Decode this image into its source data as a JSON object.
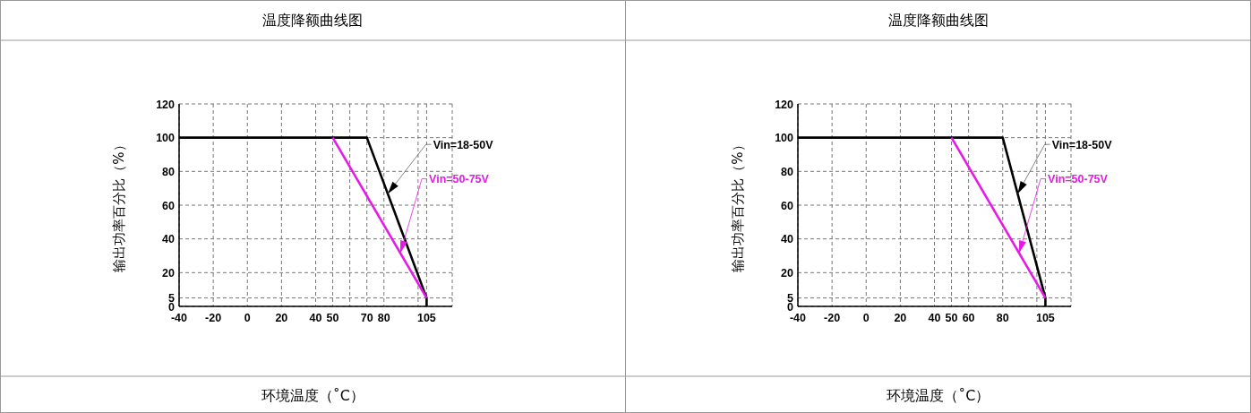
{
  "chart_data": [
    {
      "type": "line",
      "title": "温度降额曲线图",
      "xlabel": "环境温度（˚C）",
      "ylabel": "输出功率百分比（%）",
      "xlim": [
        -40,
        120
      ],
      "ylim": [
        0,
        120
      ],
      "grid": true,
      "xticks": [
        -40,
        -20,
        0,
        20,
        40,
        50,
        {
          "value": 60,
          "label": null
        },
        70,
        80,
        {
          "value": 100,
          "label": null
        },
        105,
        {
          "value": 120,
          "label": null
        }
      ],
      "yticks": [
        0,
        5,
        20,
        40,
        60,
        80,
        100,
        120
      ],
      "series": [
        {
          "name": "Vin=18-50V",
          "color": "#000000",
          "x": [
            -40,
            70,
            105,
            105
          ],
          "values": [
            100,
            100,
            5,
            0
          ]
        },
        {
          "name": "Vin=50-75V",
          "color": "#e619e6",
          "x": [
            50,
            105
          ],
          "values": [
            100,
            5
          ]
        }
      ]
    },
    {
      "type": "line",
      "title": "温度降额曲线图",
      "xlabel": "环境温度（˚C）",
      "ylabel": "输出功率百分比（%）",
      "xlim": [
        -40,
        120
      ],
      "ylim": [
        0,
        120
      ],
      "grid": true,
      "xticks": [
        -40,
        -20,
        0,
        20,
        40,
        50,
        60,
        80,
        {
          "value": 100,
          "label": null
        },
        105,
        {
          "value": 120,
          "label": null
        }
      ],
      "yticks": [
        0,
        5,
        20,
        40,
        60,
        80,
        100,
        120
      ],
      "series": [
        {
          "name": "Vin=18-50V",
          "color": "#000000",
          "x": [
            -40,
            80,
            105,
            105
          ],
          "values": [
            100,
            100,
            5,
            0
          ]
        },
        {
          "name": "Vin=50-75V",
          "color": "#e619e6",
          "x": [
            50,
            105
          ],
          "values": [
            100,
            5
          ]
        }
      ]
    }
  ]
}
